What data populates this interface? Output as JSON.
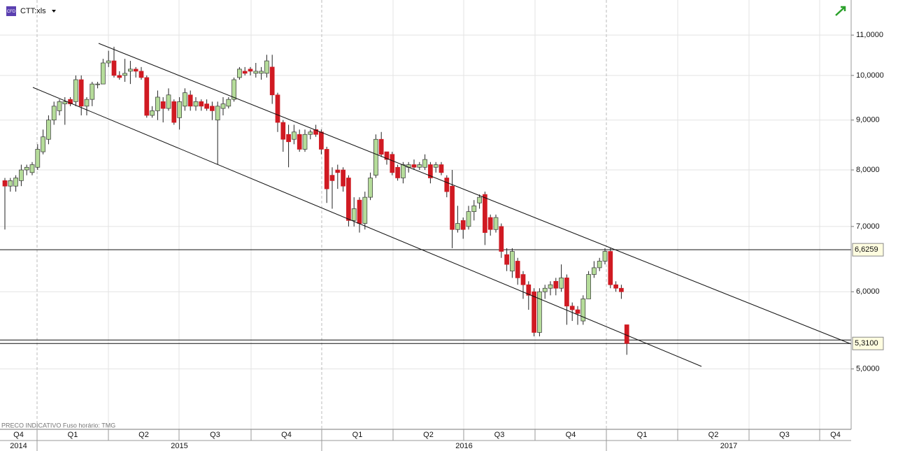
{
  "header": {
    "icon": "CFD",
    "symbol": "CTT:xls"
  },
  "footer": "PRECO INDICATIVO   Fuso horário: TMG",
  "chart_data": {
    "type": "candlestick",
    "open": [
      7.8,
      7.7,
      7.7,
      7.8,
      8.0,
      7.95,
      8.05,
      8.35,
      8.6,
      9.0,
      9.2,
      9.35,
      9.45,
      9.4,
      9.9,
      9.3,
      9.45,
      9.8,
      9.8,
      10.3,
      10.35,
      10.0,
      10.0,
      10.1,
      10.15,
      10.1,
      9.95,
      9.1,
      9.2,
      9.4,
      9.25,
      9.4,
      9.05,
      9.3,
      9.55,
      9.3,
      9.4,
      9.35,
      9.3,
      9.0,
      9.25,
      9.3,
      9.45,
      9.95,
      10.1,
      10.15,
      10.05,
      10.05,
      10.05,
      10.2,
      9.55,
      8.95,
      8.7,
      8.6,
      8.7,
      8.4,
      8.7,
      8.8,
      8.75,
      8.4,
      7.9,
      8.0,
      8.0,
      7.85,
      7.1,
      7.45,
      7.05,
      7.5,
      7.9,
      8.6,
      8.35,
      8.3,
      8.05,
      7.85,
      8.05,
      8.1,
      8.05,
      8.05,
      8.1,
      8.05,
      8.1,
      7.85,
      7.7,
      6.95,
      7.1,
      7.0,
      7.25,
      7.4,
      7.55,
      7.15,
      6.95,
      7.0,
      6.55,
      6.3,
      6.45,
      6.25,
      6.1,
      6.0,
      5.45,
      6.0,
      6.05,
      6.15,
      6.05,
      6.2,
      5.8,
      5.75,
      5.6,
      5.9,
      6.25,
      6.35,
      6.45,
      6.6,
      6.1,
      6.05,
      5.55
    ],
    "high": [
      7.85,
      7.85,
      7.9,
      8.1,
      8.1,
      8.15,
      8.5,
      8.8,
      9.1,
      9.4,
      9.45,
      9.5,
      9.5,
      10.0,
      10.0,
      9.5,
      9.85,
      9.85,
      10.4,
      10.6,
      10.7,
      10.1,
      10.4,
      10.35,
      10.2,
      10.2,
      10.0,
      9.3,
      9.65,
      9.5,
      9.7,
      9.45,
      9.5,
      9.7,
      9.65,
      9.5,
      9.45,
      9.45,
      9.4,
      9.4,
      9.5,
      9.5,
      9.95,
      10.2,
      10.2,
      10.2,
      10.3,
      10.2,
      10.5,
      10.5,
      9.6,
      9.0,
      8.9,
      8.9,
      8.8,
      8.8,
      8.8,
      8.9,
      8.8,
      8.45,
      8.05,
      8.1,
      8.05,
      7.9,
      7.5,
      7.5,
      7.6,
      7.95,
      8.7,
      8.75,
      8.35,
      8.35,
      8.1,
      8.15,
      8.15,
      8.2,
      8.15,
      8.3,
      8.15,
      8.15,
      8.15,
      7.9,
      8.0,
      7.35,
      7.15,
      7.35,
      7.45,
      7.55,
      7.6,
      7.2,
      7.2,
      7.05,
      6.65,
      6.65,
      6.5,
      6.3,
      6.15,
      6.05,
      6.05,
      6.1,
      6.15,
      6.2,
      6.4,
      6.25,
      5.85,
      5.8,
      5.95,
      6.3,
      6.45,
      6.5,
      6.65,
      6.65,
      6.15,
      6.1,
      5.55
    ],
    "low": [
      6.95,
      7.6,
      7.6,
      7.7,
      7.9,
      7.9,
      8.0,
      8.3,
      8.5,
      8.9,
      9.1,
      8.9,
      9.3,
      9.3,
      9.1,
      9.1,
      9.3,
      9.7,
      9.8,
      10.2,
      9.95,
      9.9,
      9.85,
      9.8,
      9.95,
      9.9,
      9.05,
      9.05,
      9.0,
      8.95,
      9.2,
      8.9,
      8.8,
      9.2,
      9.2,
      9.2,
      9.2,
      9.2,
      9.0,
      8.1,
      9.1,
      9.25,
      9.4,
      9.9,
      10.0,
      10.0,
      9.95,
      9.9,
      9.95,
      9.35,
      8.75,
      8.35,
      8.05,
      8.5,
      8.35,
      8.35,
      8.6,
      8.65,
      8.3,
      7.4,
      7.3,
      7.65,
      7.6,
      7.0,
      7.0,
      6.9,
      6.95,
      7.45,
      7.85,
      8.25,
      8.1,
      7.9,
      7.8,
      7.75,
      7.95,
      8.0,
      8.0,
      8.0,
      7.75,
      7.95,
      7.9,
      7.5,
      6.65,
      6.9,
      6.8,
      6.95,
      7.1,
      7.3,
      6.7,
      6.85,
      6.9,
      6.5,
      6.3,
      6.2,
      6.1,
      5.9,
      5.75,
      5.4,
      5.4,
      5.9,
      5.95,
      5.95,
      6.0,
      5.55,
      5.6,
      5.55,
      5.55,
      5.9,
      6.2,
      6.3,
      6.4,
      6.05,
      6.0,
      5.9,
      5.17
    ],
    "close": [
      7.7,
      7.8,
      7.85,
      8.0,
      8.05,
      8.1,
      8.4,
      8.65,
      9.0,
      9.3,
      9.4,
      9.4,
      9.35,
      9.9,
      9.3,
      9.45,
      9.8,
      9.8,
      10.3,
      10.35,
      10.0,
      9.95,
      10.05,
      10.15,
      10.1,
      9.95,
      9.1,
      9.2,
      9.5,
      9.25,
      9.55,
      8.95,
      9.4,
      9.6,
      9.3,
      9.4,
      9.3,
      9.25,
      9.2,
      9.3,
      9.35,
      9.45,
      9.9,
      10.15,
      10.05,
      10.1,
      10.1,
      10.1,
      10.35,
      9.55,
      8.95,
      8.6,
      8.55,
      8.75,
      8.4,
      8.7,
      8.75,
      8.7,
      8.4,
      7.65,
      7.8,
      7.95,
      7.7,
      7.1,
      7.3,
      7.05,
      7.5,
      7.85,
      8.6,
      8.3,
      8.2,
      7.95,
      7.85,
      8.1,
      8.1,
      8.05,
      8.1,
      8.2,
      7.85,
      8.1,
      7.95,
      7.6,
      6.95,
      7.05,
      6.95,
      7.25,
      7.35,
      7.5,
      6.9,
      6.95,
      7.15,
      6.6,
      6.4,
      6.6,
      6.2,
      6.1,
      5.95,
      5.45,
      6.0,
      6.05,
      6.1,
      6.05,
      6.2,
      5.8,
      5.75,
      5.7,
      5.9,
      6.25,
      6.35,
      6.45,
      6.6,
      6.1,
      6.05,
      6.0,
      5.31
    ],
    "up_color": "#b5dc9a",
    "down_color": "#d01a22",
    "ylim": [
      4.35,
      11.95
    ],
    "log_scale": true,
    "yticks": [
      {
        "value": 5,
        "label": "5,0000"
      },
      {
        "value": 6,
        "label": "6,0000"
      },
      {
        "value": 7,
        "label": "7,0000"
      },
      {
        "value": 8,
        "label": "8,0000"
      },
      {
        "value": 9,
        "label": "9,0000"
      },
      {
        "value": 10,
        "label": "10,0000"
      },
      {
        "value": 11,
        "label": "11,0000"
      }
    ],
    "levels": [
      {
        "value": 6.6259,
        "label": "6,6259"
      },
      {
        "value": 5.354
      },
      {
        "value": 5.31,
        "label": "5,3100"
      }
    ],
    "quarters": [
      "Q4",
      "Q1",
      "Q2",
      "Q3",
      "Q4",
      "Q1",
      "Q2",
      "Q3",
      "Q4",
      "Q1",
      "Q2",
      "Q3",
      "Q4"
    ],
    "years": [
      "2014",
      "2015",
      "2016",
      "2017"
    ]
  }
}
